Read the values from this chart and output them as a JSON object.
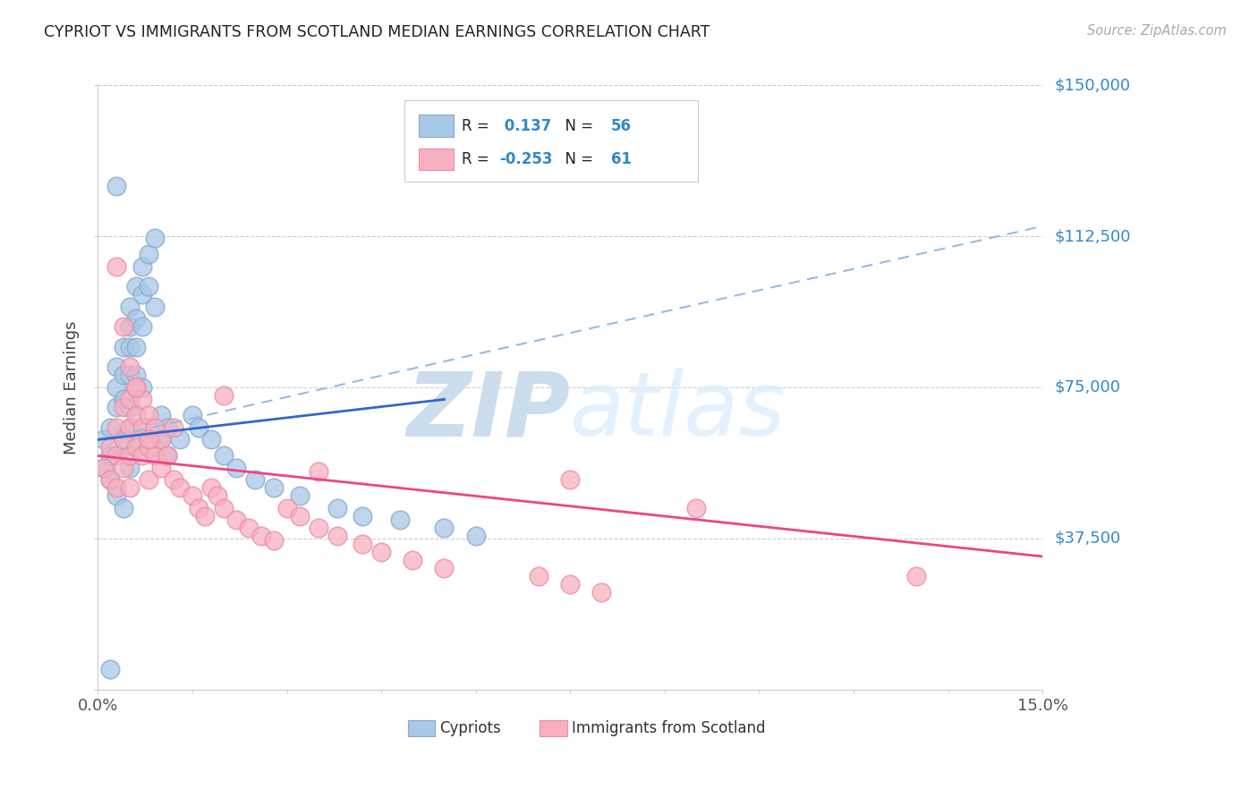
{
  "title": "CYPRIOT VS IMMIGRANTS FROM SCOTLAND MEDIAN EARNINGS CORRELATION CHART",
  "source": "Source: ZipAtlas.com",
  "ylabel": "Median Earnings",
  "xlim": [
    0.0,
    0.15
  ],
  "ylim": [
    0,
    150000
  ],
  "yticks": [
    0,
    37500,
    75000,
    112500,
    150000
  ],
  "ytick_labels": [
    "",
    "$37,500",
    "$75,000",
    "$112,500",
    "$150,000"
  ],
  "R_blue": 0.137,
  "N_blue": 56,
  "R_pink": -0.253,
  "N_pink": 61,
  "blue_color": "#a8c8e8",
  "blue_edge_color": "#88aacc",
  "pink_color": "#f8b0c0",
  "pink_edge_color": "#e890a8",
  "blue_line_color": "#3366cc",
  "pink_line_color": "#ee4488",
  "dashed_line_color": "#99bbdd",
  "title_color": "#222222",
  "axis_label_color": "#444444",
  "right_label_color": "#3388cc",
  "watermark_color": "#ccdded",
  "legend_text_color": "#222222",
  "legend_value_color": "#3388cc",
  "blue_solid_line": [
    [
      0.0,
      62000
    ],
    [
      0.055,
      72000
    ]
  ],
  "blue_dashed_line": [
    [
      0.0,
      62000
    ],
    [
      0.15,
      115000
    ]
  ],
  "pink_solid_line": [
    [
      0.0,
      58000
    ],
    [
      0.15,
      33000
    ]
  ],
  "blue_x": [
    0.001,
    0.001,
    0.002,
    0.002,
    0.002,
    0.003,
    0.003,
    0.003,
    0.003,
    0.004,
    0.004,
    0.004,
    0.005,
    0.005,
    0.005,
    0.005,
    0.005,
    0.005,
    0.006,
    0.006,
    0.006,
    0.006,
    0.007,
    0.007,
    0.007,
    0.007,
    0.008,
    0.008,
    0.008,
    0.009,
    0.009,
    0.009,
    0.01,
    0.01,
    0.011,
    0.011,
    0.013,
    0.015,
    0.016,
    0.018,
    0.02,
    0.022,
    0.025,
    0.028,
    0.032,
    0.038,
    0.042,
    0.048,
    0.055,
    0.06,
    0.003,
    0.004,
    0.005,
    0.006,
    0.004,
    0.002
  ],
  "blue_y": [
    62000,
    55000,
    65000,
    58000,
    52000,
    80000,
    75000,
    70000,
    48000,
    85000,
    78000,
    72000,
    95000,
    90000,
    85000,
    78000,
    70000,
    65000,
    100000,
    92000,
    85000,
    78000,
    105000,
    98000,
    90000,
    75000,
    108000,
    100000,
    65000,
    112000,
    95000,
    60000,
    68000,
    62000,
    65000,
    58000,
    62000,
    68000,
    65000,
    62000,
    58000,
    55000,
    52000,
    50000,
    48000,
    45000,
    43000,
    42000,
    40000,
    38000,
    125000,
    60000,
    55000,
    62000,
    45000,
    5000
  ],
  "pink_x": [
    0.001,
    0.002,
    0.002,
    0.003,
    0.003,
    0.003,
    0.004,
    0.004,
    0.004,
    0.005,
    0.005,
    0.005,
    0.005,
    0.006,
    0.006,
    0.006,
    0.007,
    0.007,
    0.007,
    0.008,
    0.008,
    0.008,
    0.009,
    0.009,
    0.01,
    0.01,
    0.011,
    0.012,
    0.013,
    0.015,
    0.016,
    0.017,
    0.018,
    0.019,
    0.02,
    0.022,
    0.024,
    0.026,
    0.028,
    0.03,
    0.032,
    0.035,
    0.038,
    0.042,
    0.045,
    0.05,
    0.055,
    0.07,
    0.075,
    0.08,
    0.003,
    0.004,
    0.005,
    0.006,
    0.008,
    0.012,
    0.02,
    0.035,
    0.075,
    0.095,
    0.13
  ],
  "pink_y": [
    55000,
    60000,
    52000,
    65000,
    58000,
    50000,
    70000,
    62000,
    55000,
    72000,
    65000,
    58000,
    50000,
    75000,
    68000,
    60000,
    72000,
    65000,
    58000,
    68000,
    60000,
    52000,
    65000,
    58000,
    62000,
    55000,
    58000,
    52000,
    50000,
    48000,
    45000,
    43000,
    50000,
    48000,
    45000,
    42000,
    40000,
    38000,
    37000,
    45000,
    43000,
    40000,
    38000,
    36000,
    34000,
    32000,
    30000,
    28000,
    26000,
    24000,
    105000,
    90000,
    80000,
    75000,
    62000,
    65000,
    73000,
    54000,
    52000,
    45000,
    28000
  ]
}
